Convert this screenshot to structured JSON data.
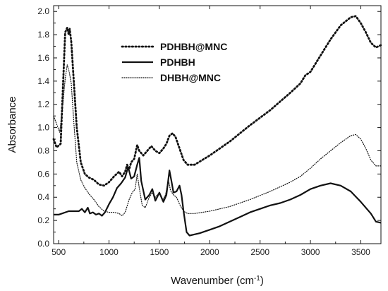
{
  "chart_data": {
    "type": "line",
    "xlabel": "Wavenumber (cm",
    "xlabel_sup": "-1",
    "xlabel_close": ")",
    "ylabel": "Absorbance",
    "xlim": [
      450,
      3700
    ],
    "ylim": [
      0.0,
      2.05
    ],
    "x_ticks": [
      500,
      1000,
      1500,
      2000,
      2500,
      3000,
      3500
    ],
    "y_ticks": [
      0.0,
      0.2,
      0.4,
      0.6,
      0.8,
      1.0,
      1.2,
      1.4,
      1.6,
      1.8,
      2.0
    ],
    "x_tick_labels": [
      "500",
      "1000",
      "1500",
      "2000",
      "2500",
      "3000",
      "3500"
    ],
    "y_tick_labels": [
      "0.0",
      "0.2",
      "0.4",
      "0.6",
      "0.8",
      "1.0",
      "1.2",
      "1.4",
      "1.6",
      "1.8",
      "2.0"
    ],
    "grid": false,
    "legend_position": "upper-left",
    "series": [
      {
        "name": "PDHBH@MNC",
        "style": "dotted-bold",
        "color": "#111111",
        "points": [
          [
            450,
            0.9
          ],
          [
            480,
            0.83
          ],
          [
            520,
            0.86
          ],
          [
            545,
            1.4
          ],
          [
            565,
            1.82
          ],
          [
            585,
            1.86
          ],
          [
            600,
            1.8
          ],
          [
            610,
            1.85
          ],
          [
            625,
            1.74
          ],
          [
            650,
            1.4
          ],
          [
            680,
            1.0
          ],
          [
            720,
            0.7
          ],
          [
            760,
            0.6
          ],
          [
            800,
            0.57
          ],
          [
            850,
            0.55
          ],
          [
            900,
            0.51
          ],
          [
            950,
            0.5
          ],
          [
            1000,
            0.53
          ],
          [
            1050,
            0.58
          ],
          [
            1100,
            0.62
          ],
          [
            1130,
            0.58
          ],
          [
            1160,
            0.62
          ],
          [
            1180,
            0.68
          ],
          [
            1200,
            0.64
          ],
          [
            1220,
            0.7
          ],
          [
            1250,
            0.73
          ],
          [
            1280,
            0.85
          ],
          [
            1300,
            0.8
          ],
          [
            1340,
            0.76
          ],
          [
            1380,
            0.8
          ],
          [
            1420,
            0.84
          ],
          [
            1460,
            0.8
          ],
          [
            1500,
            0.78
          ],
          [
            1540,
            0.82
          ],
          [
            1570,
            0.86
          ],
          [
            1600,
            0.93
          ],
          [
            1630,
            0.95
          ],
          [
            1660,
            0.92
          ],
          [
            1700,
            0.82
          ],
          [
            1740,
            0.72
          ],
          [
            1780,
            0.68
          ],
          [
            1850,
            0.68
          ],
          [
            2000,
            0.76
          ],
          [
            2200,
            0.88
          ],
          [
            2400,
            1.02
          ],
          [
            2600,
            1.15
          ],
          [
            2800,
            1.3
          ],
          [
            2900,
            1.38
          ],
          [
            2950,
            1.45
          ],
          [
            3000,
            1.48
          ],
          [
            3100,
            1.62
          ],
          [
            3200,
            1.76
          ],
          [
            3300,
            1.88
          ],
          [
            3400,
            1.95
          ],
          [
            3450,
            1.96
          ],
          [
            3500,
            1.9
          ],
          [
            3550,
            1.82
          ],
          [
            3600,
            1.73
          ],
          [
            3650,
            1.69
          ],
          [
            3700,
            1.71
          ]
        ]
      },
      {
        "name": "PDHBH",
        "style": "solid",
        "color": "#111111",
        "points": [
          [
            450,
            0.25
          ],
          [
            500,
            0.25
          ],
          [
            600,
            0.28
          ],
          [
            700,
            0.28
          ],
          [
            730,
            0.3
          ],
          [
            760,
            0.27
          ],
          [
            790,
            0.31
          ],
          [
            810,
            0.26
          ],
          [
            840,
            0.27
          ],
          [
            870,
            0.25
          ],
          [
            900,
            0.26
          ],
          [
            930,
            0.24
          ],
          [
            960,
            0.27
          ],
          [
            1000,
            0.34
          ],
          [
            1040,
            0.4
          ],
          [
            1080,
            0.48
          ],
          [
            1120,
            0.52
          ],
          [
            1160,
            0.57
          ],
          [
            1190,
            0.66
          ],
          [
            1220,
            0.56
          ],
          [
            1250,
            0.58
          ],
          [
            1280,
            0.68
          ],
          [
            1300,
            0.74
          ],
          [
            1320,
            0.54
          ],
          [
            1360,
            0.38
          ],
          [
            1400,
            0.42
          ],
          [
            1430,
            0.47
          ],
          [
            1460,
            0.37
          ],
          [
            1500,
            0.44
          ],
          [
            1540,
            0.36
          ],
          [
            1570,
            0.42
          ],
          [
            1600,
            0.63
          ],
          [
            1620,
            0.54
          ],
          [
            1640,
            0.44
          ],
          [
            1670,
            0.45
          ],
          [
            1700,
            0.5
          ],
          [
            1720,
            0.42
          ],
          [
            1740,
            0.28
          ],
          [
            1770,
            0.1
          ],
          [
            1800,
            0.07
          ],
          [
            1850,
            0.08
          ],
          [
            1900,
            0.09
          ],
          [
            2000,
            0.12
          ],
          [
            2100,
            0.15
          ],
          [
            2200,
            0.19
          ],
          [
            2300,
            0.23
          ],
          [
            2400,
            0.27
          ],
          [
            2500,
            0.3
          ],
          [
            2600,
            0.33
          ],
          [
            2700,
            0.35
          ],
          [
            2800,
            0.38
          ],
          [
            2900,
            0.42
          ],
          [
            3000,
            0.47
          ],
          [
            3100,
            0.5
          ],
          [
            3200,
            0.52
          ],
          [
            3300,
            0.5
          ],
          [
            3400,
            0.45
          ],
          [
            3500,
            0.36
          ],
          [
            3600,
            0.26
          ],
          [
            3650,
            0.19
          ],
          [
            3700,
            0.18
          ]
        ]
      },
      {
        "name": "DHBH@MNC",
        "style": "dotted-thin",
        "color": "#111111",
        "points": [
          [
            450,
            1.1
          ],
          [
            480,
            1.03
          ],
          [
            510,
            0.96
          ],
          [
            540,
            1.18
          ],
          [
            565,
            1.42
          ],
          [
            585,
            1.54
          ],
          [
            605,
            1.48
          ],
          [
            625,
            1.38
          ],
          [
            650,
            1.05
          ],
          [
            680,
            0.7
          ],
          [
            720,
            0.55
          ],
          [
            760,
            0.48
          ],
          [
            800,
            0.43
          ],
          [
            850,
            0.38
          ],
          [
            900,
            0.32
          ],
          [
            950,
            0.28
          ],
          [
            1000,
            0.27
          ],
          [
            1050,
            0.27
          ],
          [
            1100,
            0.26
          ],
          [
            1130,
            0.24
          ],
          [
            1160,
            0.27
          ],
          [
            1200,
            0.38
          ],
          [
            1230,
            0.44
          ],
          [
            1260,
            0.47
          ],
          [
            1280,
            0.6
          ],
          [
            1300,
            0.48
          ],
          [
            1330,
            0.33
          ],
          [
            1360,
            0.31
          ],
          [
            1400,
            0.4
          ],
          [
            1430,
            0.44
          ],
          [
            1460,
            0.4
          ],
          [
            1500,
            0.44
          ],
          [
            1530,
            0.37
          ],
          [
            1560,
            0.42
          ],
          [
            1590,
            0.55
          ],
          [
            1610,
            0.46
          ],
          [
            1640,
            0.42
          ],
          [
            1670,
            0.4
          ],
          [
            1700,
            0.34
          ],
          [
            1740,
            0.28
          ],
          [
            1780,
            0.26
          ],
          [
            1850,
            0.26
          ],
          [
            2000,
            0.28
          ],
          [
            2200,
            0.32
          ],
          [
            2400,
            0.38
          ],
          [
            2600,
            0.45
          ],
          [
            2800,
            0.53
          ],
          [
            2900,
            0.58
          ],
          [
            3000,
            0.65
          ],
          [
            3100,
            0.73
          ],
          [
            3200,
            0.8
          ],
          [
            3300,
            0.87
          ],
          [
            3400,
            0.93
          ],
          [
            3450,
            0.94
          ],
          [
            3500,
            0.9
          ],
          [
            3550,
            0.82
          ],
          [
            3600,
            0.72
          ],
          [
            3650,
            0.67
          ],
          [
            3700,
            0.67
          ]
        ]
      }
    ]
  }
}
